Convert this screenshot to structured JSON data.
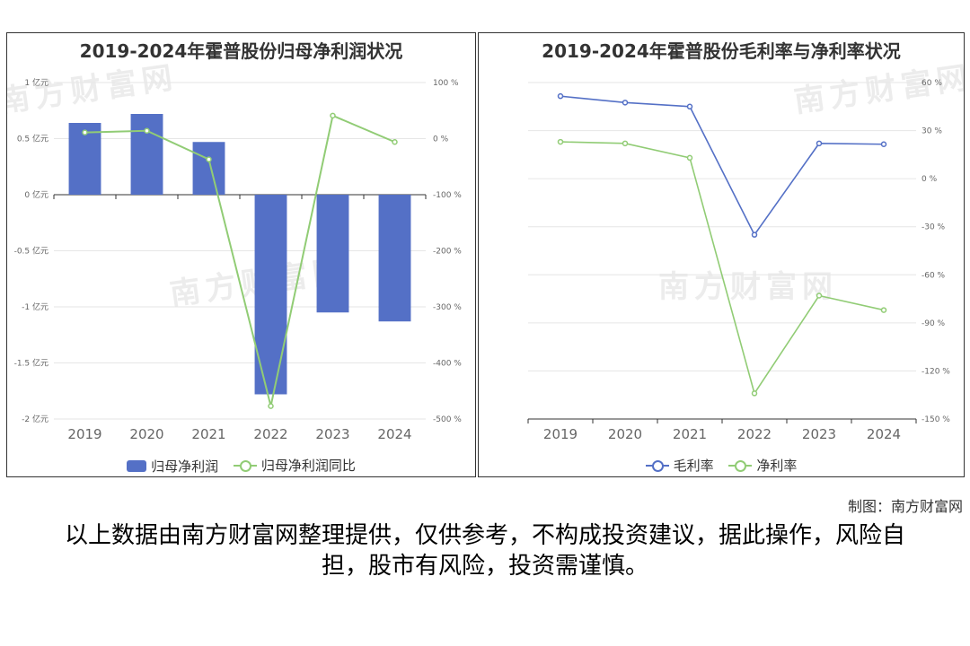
{
  "watermark": "南方财富网",
  "credit": "制图：南方财富网",
  "disclaimer": "以上数据由南方财富网整理提供，仅供参考，不构成投资建议，据此操作，风险自担，股市有风险，投资需谨慎。",
  "colors": {
    "bar": "#5470c6",
    "line_green": "#91cc75",
    "line_blue": "#5470c6",
    "axis": "#333333",
    "grid": "#e6e6e6"
  },
  "chart_data": [
    {
      "type": "bar",
      "title": "2019-2024年霍普股份归母净利润状况",
      "categories": [
        "2019",
        "2020",
        "2021",
        "2022",
        "2023",
        "2024"
      ],
      "series": [
        {
          "name": "归母净利润",
          "type": "bar",
          "axis": "left",
          "values": [
            0.64,
            0.72,
            0.47,
            -1.78,
            -1.05,
            -1.13
          ]
        },
        {
          "name": "归母净利润同比",
          "type": "line",
          "axis": "right",
          "values": [
            11,
            14,
            -37,
            -477,
            41,
            -6
          ]
        }
      ],
      "left_axis": {
        "ylim": [
          -2,
          1
        ],
        "ticks": [
          "-2 亿元",
          "-1.5 亿元",
          "-1 亿元",
          "-0.5 亿元",
          "0 亿元",
          "0.5 亿元",
          "1 亿元"
        ]
      },
      "right_axis": {
        "ylim": [
          -500,
          100
        ],
        "ticks": [
          "-500 %",
          "-400 %",
          "-300 %",
          "-200 %",
          "-100 %",
          "0 %",
          "100 %"
        ]
      },
      "legend_position": "bottom",
      "grid": true
    },
    {
      "type": "line",
      "title": "2019-2024年霍普股份毛利率与净利率状况",
      "categories": [
        "2019",
        "2020",
        "2021",
        "2022",
        "2023",
        "2024"
      ],
      "series": [
        {
          "name": "毛利率",
          "values": [
            51.5,
            47.5,
            45.0,
            -35.0,
            22.0,
            21.5
          ]
        },
        {
          "name": "净利率",
          "values": [
            23.0,
            22.0,
            13.0,
            -134.0,
            -73.0,
            -82.0
          ]
        }
      ],
      "right_axis": {
        "ylim": [
          -150,
          60
        ],
        "ticks": [
          "-150 %",
          "-120 %",
          "-90 %",
          "-60 %",
          "-30 %",
          "0 %",
          "30 %",
          "60 %"
        ]
      },
      "legend_position": "bottom",
      "grid": true
    }
  ]
}
